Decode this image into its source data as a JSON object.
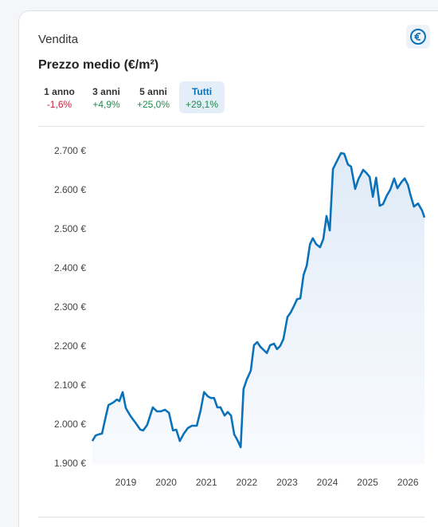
{
  "header": {
    "section": "Vendita",
    "title": "Prezzo medio (€/m²)"
  },
  "tabs": [
    {
      "label": "1 anno",
      "change": "-1,6%"
    },
    {
      "label": "3 anni",
      "change": "+4,9%"
    },
    {
      "label": "5 anni",
      "change": "+25,0%"
    },
    {
      "label": "Tutti",
      "change": "+29,1%"
    }
  ],
  "chart_data": {
    "type": "line",
    "x": [
      2018.17,
      2018.25,
      2018.33,
      2018.41,
      2018.49,
      2018.57,
      2018.68,
      2018.78,
      2018.84,
      2018.92,
      2019.0,
      2019.12,
      2019.24,
      2019.36,
      2019.43,
      2019.53,
      2019.67,
      2019.77,
      2019.87,
      2019.97,
      2020.07,
      2020.17,
      2020.25,
      2020.34,
      2020.44,
      2020.54,
      2020.64,
      2020.76,
      2020.86,
      2020.94,
      2021.04,
      2021.11,
      2021.19,
      2021.27,
      2021.35,
      2021.45,
      2021.53,
      2021.61,
      2021.69,
      2021.77,
      2021.85,
      2021.92,
      2022.0,
      2022.1,
      2022.18,
      2022.26,
      2022.34,
      2022.42,
      2022.5,
      2022.58,
      2022.68,
      2022.75,
      2022.83,
      2022.91,
      2023.01,
      2023.09,
      2023.17,
      2023.25,
      2023.33,
      2023.41,
      2023.49,
      2023.57,
      2023.64,
      2023.72,
      2023.82,
      2023.9,
      2023.98,
      2024.06,
      2024.14,
      2024.24,
      2024.34,
      2024.42,
      2024.51,
      2024.59,
      2024.69,
      2024.77,
      2024.89,
      2024.97,
      2025.05,
      2025.13,
      2025.21,
      2025.3,
      2025.38,
      2025.48,
      2025.56,
      2025.66,
      2025.74,
      2025.84,
      2025.92,
      2026.0,
      2026.07,
      2026.15,
      2026.25,
      2026.35,
      2026.41
    ],
    "series": [
      {
        "color": "#0b72b9",
        "values": [
          1959,
          1973,
          1976,
          1978,
          2016,
          2051,
          2057,
          2065,
          2061,
          2084,
          2043,
          2022,
          2006,
          1988,
          1986,
          2000,
          2045,
          2035,
          2035,
          2039,
          2031,
          1986,
          1988,
          1959,
          1978,
          1992,
          1998,
          1998,
          2039,
          2084,
          2073,
          2069,
          2069,
          2045,
          2045,
          2024,
          2033,
          2024,
          1976,
          1961,
          1943,
          2092,
          2116,
          2139,
          2204,
          2212,
          2200,
          2192,
          2184,
          2204,
          2208,
          2194,
          2202,
          2220,
          2276,
          2288,
          2304,
          2322,
          2324,
          2384,
          2408,
          2463,
          2478,
          2463,
          2455,
          2476,
          2535,
          2498,
          2655,
          2676,
          2696,
          2694,
          2667,
          2661,
          2604,
          2629,
          2653,
          2645,
          2635,
          2584,
          2633,
          2561,
          2565,
          2588,
          2602,
          2631,
          2606,
          2622,
          2631,
          2614,
          2586,
          2559,
          2567,
          2549,
          2531
        ]
      }
    ],
    "xlim": [
      2018.17,
      2026.41
    ],
    "xticks": [
      2019,
      2020,
      2021,
      2022,
      2023,
      2024,
      2025,
      2026
    ],
    "ylim": [
      1900,
      2700
    ],
    "yticks": [
      {
        "value": 1900,
        "label": "1.900 €"
      },
      {
        "value": 2000,
        "label": "2.000 €"
      },
      {
        "value": 2100,
        "label": "2.100 €"
      },
      {
        "value": 2200,
        "label": "2.200 €"
      },
      {
        "value": 2300,
        "label": "2.300 €"
      },
      {
        "value": 2400,
        "label": "2.400 €"
      },
      {
        "value": 2500,
        "label": "2.500 €"
      },
      {
        "value": 2600,
        "label": "2.600 €"
      },
      {
        "value": 2700,
        "label": "2.700 €"
      }
    ],
    "grid": false
  }
}
